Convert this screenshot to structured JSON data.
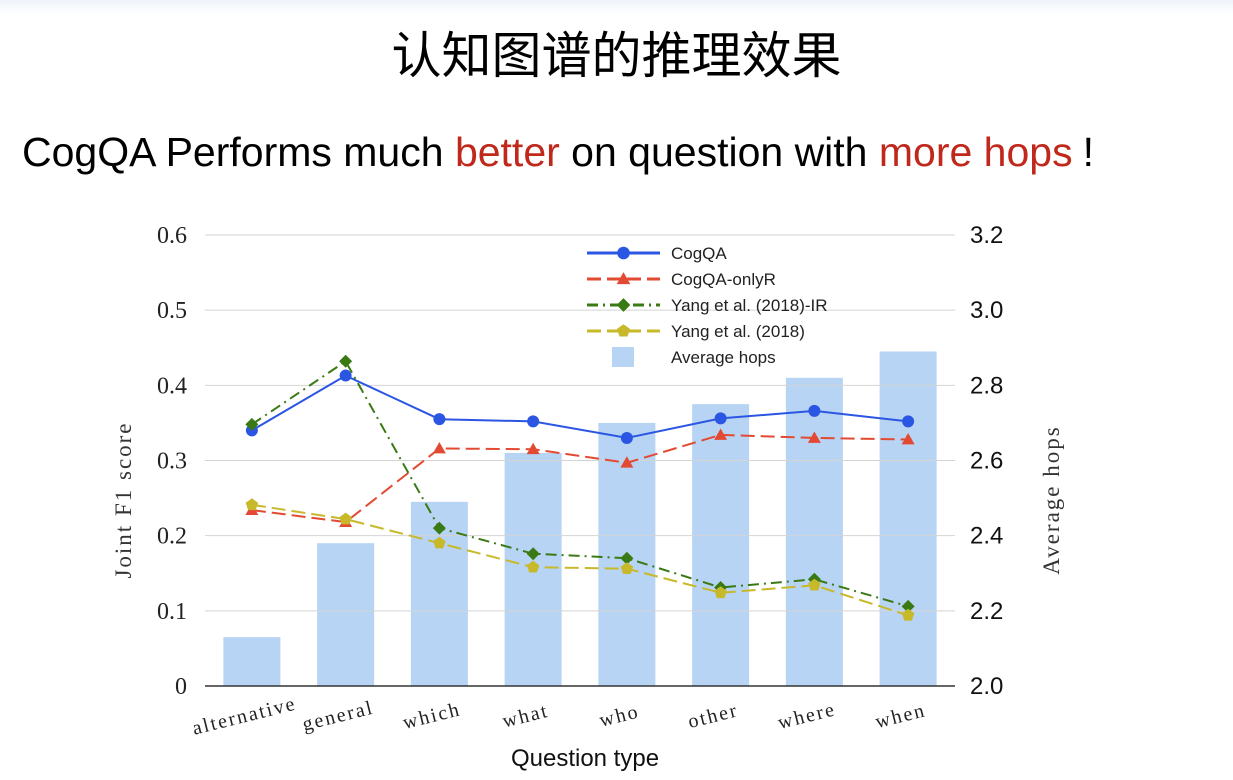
{
  "slide": {
    "title": "认知图谱的推理效果",
    "subtitle_parts": [
      "CogQA Performs much ",
      "better",
      " on question with ",
      "more hops",
      "!"
    ]
  },
  "chart_data": {
    "type": "bar+line",
    "xlabel": "Question type",
    "ylabel_left": "Joint F1 score",
    "ylabel_right": "Average hops",
    "ylim_left": [
      0,
      0.6
    ],
    "ylim_right": [
      2.0,
      3.2
    ],
    "yticks_left": [
      "0",
      "0.1",
      "0.2",
      "0.3",
      "0.4",
      "0.5",
      "0.6"
    ],
    "yticks_right": [
      "2.0",
      "2.2",
      "2.4",
      "2.6",
      "2.8",
      "3.0",
      "3.2"
    ],
    "categories": [
      "alternative",
      "general",
      "which",
      "what",
      "who",
      "other",
      "where",
      "when"
    ],
    "grid": true,
    "legend_position": "top-center",
    "bars": {
      "name": "Average hops",
      "axis": "right",
      "color": "#b7d4f4",
      "values": [
        2.13,
        2.38,
        2.49,
        2.62,
        2.7,
        2.75,
        2.82,
        2.89
      ]
    },
    "series": [
      {
        "name": "CogQA",
        "color": "#2b56e3",
        "marker": "circle",
        "dash": "solid",
        "values": [
          0.34,
          0.413,
          0.355,
          0.352,
          0.33,
          0.356,
          0.366,
          0.352
        ]
      },
      {
        "name": "CogQA-onlyR",
        "color": "#e34a33",
        "marker": "triangle",
        "dash": "dashed",
        "values": [
          0.234,
          0.218,
          0.316,
          0.315,
          0.297,
          0.334,
          0.33,
          0.328
        ]
      },
      {
        "name": "Yang et al. (2018)-IR",
        "color": "#3a7a15",
        "marker": "diamond",
        "dash": "dashdot",
        "values": [
          0.348,
          0.432,
          0.21,
          0.176,
          0.17,
          0.131,
          0.142,
          0.106
        ]
      },
      {
        "name": "Yang et al. (2018)",
        "color": "#c8b92a",
        "marker": "pentagon",
        "dash": "dashed",
        "values": [
          0.241,
          0.222,
          0.19,
          0.158,
          0.156,
          0.124,
          0.134,
          0.094
        ]
      }
    ]
  }
}
